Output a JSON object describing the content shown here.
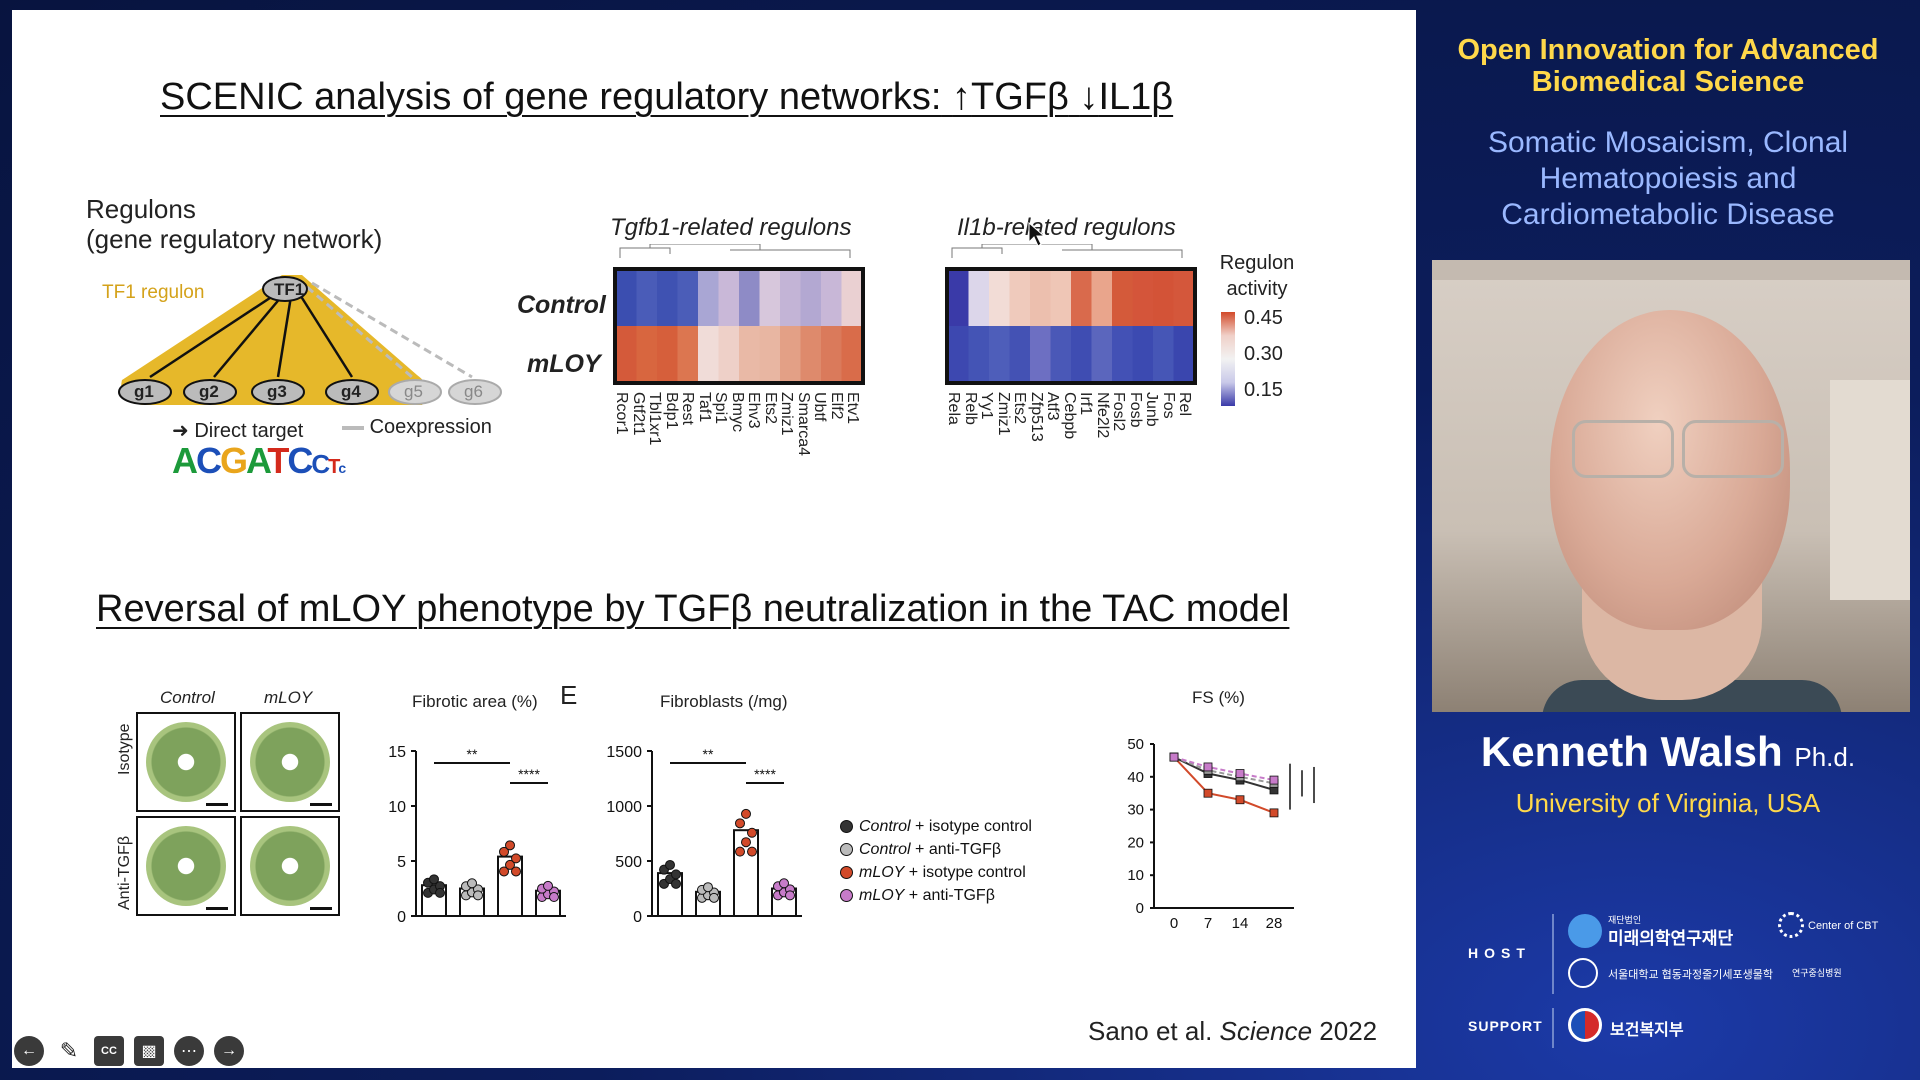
{
  "slide": {
    "title_top": "SCENIC analysis of gene regulatory networks:",
    "title_top_tgf": "TGFβ",
    "title_top_il": "IL1β",
    "regulons_title": "Regulons",
    "regulons_sub": "(gene regulatory network)",
    "tf1_regulon": "TF1 regulon",
    "tf1_node": "TF1",
    "genes": [
      "g1",
      "g2",
      "g3",
      "g4",
      "g5",
      "g6"
    ],
    "direct_target": "Direct target",
    "coexpression": "Coexpression",
    "motif": "ACGATCCTc",
    "heat1_title": "Tgfb1-related regulons",
    "heat2_title": "Il1b-related regulons",
    "row_control": "Control",
    "row_mloy": "mLOY",
    "heat1_cols": [
      "Rcor1",
      "Gtf2t1",
      "Tbl1xr1",
      "Bdp1",
      "Rest",
      "Taf1",
      "Spi1",
      "Bmyc",
      "Ehv3",
      "Ets2",
      "Zmiz1",
      "Smarca4",
      "Ubtf",
      "Elf2",
      "Etv1"
    ],
    "heat2_cols": [
      "Rela",
      "Relb",
      "Yy1",
      "Zmiz1",
      "Ets2",
      "Zfp513",
      "Atf3",
      "Cebpb",
      "Irf1",
      "Nfe2l2",
      "Fosl2",
      "Fosb",
      "Junb",
      "Fos",
      "Rel"
    ],
    "legend_title": "Regulon activity",
    "legend_values": [
      "0.45",
      "0.30",
      "0.15"
    ],
    "title_bottom": "Reversal of mLOY phenotype by TGFβ neutralization in the TAC model",
    "histo_cols": [
      "Control",
      "mLOY"
    ],
    "histo_rows": [
      "Isotype",
      "Anti-TGFβ"
    ],
    "panel_letter": "E",
    "fibrotic_title": "Fibrotic area (%)",
    "fibrotic_ticks": [
      "15",
      "10",
      "5",
      "0"
    ],
    "fibroblasts_title": "Fibroblasts (/mg)",
    "fibroblasts_ticks": [
      "1500",
      "1000",
      "500",
      "0"
    ],
    "sig_2": "**",
    "sig_4": "****",
    "legend_items": [
      {
        "text_a": "Control",
        "text_b": " + isotype control"
      },
      {
        "text_a": "Control",
        "text_b": " + anti-TGFβ"
      },
      {
        "text_a": "mLOY",
        "text_b": " + isotype control"
      },
      {
        "text_a": "mLOY",
        "text_b": " + anti-TGFβ"
      }
    ],
    "fs_title": "FS (%)",
    "fs_yticks": [
      "50",
      "40",
      "30",
      "20",
      "10",
      "0"
    ],
    "fs_xticks": [
      "0",
      "7",
      "14",
      "28"
    ],
    "citation_a": "Sano et al. ",
    "citation_b": "Science",
    "citation_c": " 2022"
  },
  "chart_data": [
    {
      "type": "bar",
      "title": "Fibrotic area (%)",
      "ylim": [
        0,
        15
      ],
      "categories": [
        "Control + isotype control",
        "Control + anti-TGFβ",
        "mLOY + isotype control",
        "mLOY + anti-TGFβ"
      ],
      "values": [
        2.8,
        2.5,
        5.4,
        2.3
      ]
    },
    {
      "type": "bar",
      "title": "Fibroblasts (/mg)",
      "ylim": [
        0,
        1500
      ],
      "categories": [
        "Control + isotype control",
        "Control + anti-TGFβ",
        "mLOY + isotype control",
        "mLOY + anti-TGFβ"
      ],
      "values": [
        390,
        220,
        780,
        250
      ]
    },
    {
      "type": "line",
      "title": "FS (%)",
      "x": [
        0,
        7,
        14,
        28
      ],
      "ylim": [
        0,
        50
      ],
      "series": [
        {
          "name": "Control + isotype control",
          "values": [
            46,
            41,
            39,
            36
          ]
        },
        {
          "name": "Control + anti-TGFβ",
          "values": [
            46,
            42,
            40,
            38
          ]
        },
        {
          "name": "mLOY + isotype control",
          "values": [
            46,
            35,
            33,
            29
          ]
        },
        {
          "name": "mLOY + anti-TGFβ",
          "values": [
            46,
            43,
            41,
            39
          ]
        }
      ]
    }
  ],
  "colors": {
    "ctrl_iso": "#333333",
    "ctrl_anti": "#bbbbbb",
    "mloy_iso": "#d24a2a",
    "mloy_anti": "#c77bc9"
  },
  "sidebar": {
    "title": "Open Innovation for Advanced Biomedical Science",
    "title_l1": "Open Innovation for Advanced",
    "title_l2": "Biomedical Science",
    "subtitle_l1": "Somatic Mosaicism, Clonal",
    "subtitle_l2": "Hematopoiesis and",
    "subtitle_l3": "Cardiometabolic Disease",
    "speaker_name": "Kenneth Walsh",
    "speaker_degree": "Ph.d.",
    "affiliation": "University of Virginia, USA",
    "host_label": "HOST",
    "support_label": "SUPPORT",
    "host_logo1": "미래의학연구재단",
    "host_logo1_small": "재단법인",
    "host_logo2": "Center of CBT",
    "host_logo3": "서울대학교 협동과정줄기세포생물학",
    "host_logo4": "연구중심병원",
    "support_logo": "보건복지부"
  },
  "controls": [
    "back-icon",
    "pen-icon",
    "cc-icon",
    "camera-off-icon",
    "more-icon",
    "forward-icon"
  ]
}
